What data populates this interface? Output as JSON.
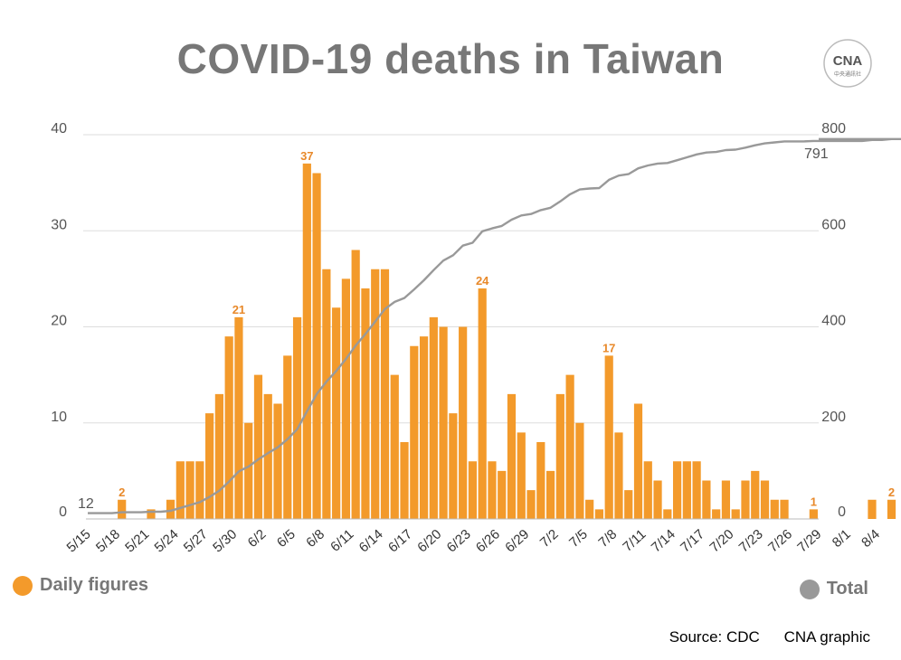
{
  "title": "COVID-19 deaths in Taiwan",
  "logo": {
    "main": "CNA",
    "sub": "中央通訊社"
  },
  "legend": {
    "daily": "Daily figures",
    "total": "Total"
  },
  "footer": {
    "source": "Source: CDC",
    "credit": "CNA graphic"
  },
  "colors": {
    "bar": "#F39A2B",
    "line": "#999999",
    "label": "#E8892A",
    "grid": "#DDDDDD",
    "text": "#555555"
  },
  "chart_data": {
    "type": "bar",
    "title": "COVID-19 deaths in Taiwan",
    "x_tick_labels": [
      "5/15",
      "5/18",
      "5/21",
      "5/24",
      "5/27",
      "5/30",
      "6/2",
      "6/5",
      "6/8",
      "6/11",
      "6/14",
      "6/17",
      "6/20",
      "6/23",
      "6/26",
      "6/29",
      "7/2",
      "7/5",
      "7/8",
      "7/11",
      "7/14",
      "7/17",
      "7/20",
      "7/23",
      "7/26",
      "7/29",
      "8/1",
      "8/4"
    ],
    "y_ticks": [
      0,
      10,
      20,
      30,
      40
    ],
    "y2_ticks": [
      0,
      200,
      400,
      600,
      800
    ],
    "ylim": [
      0,
      40
    ],
    "y2lim": [
      0,
      800
    ],
    "grid": true,
    "series": [
      {
        "name": "Daily figures",
        "type": "bar",
        "values": [
          0,
          0,
          0,
          2,
          0,
          0,
          1,
          0,
          2,
          6,
          6,
          6,
          11,
          13,
          19,
          21,
          10,
          15,
          13,
          12,
          17,
          21,
          37,
          36,
          26,
          22,
          25,
          28,
          24,
          26,
          26,
          15,
          8,
          18,
          19,
          21,
          20,
          11,
          20,
          6,
          24,
          6,
          5,
          13,
          9,
          3,
          8,
          5,
          13,
          15,
          10,
          2,
          1,
          17,
          9,
          3,
          12,
          6,
          4,
          1,
          6,
          6,
          6,
          4,
          1,
          4,
          1,
          4,
          5,
          4,
          2,
          2,
          0,
          0,
          1,
          0,
          0,
          0,
          0,
          0,
          2,
          0,
          2,
          0
        ],
        "labels": [
          {
            "index": 3,
            "value": 2
          },
          {
            "index": 15,
            "value": 21
          },
          {
            "index": 22,
            "value": 37
          },
          {
            "index": 40,
            "value": 24
          },
          {
            "index": 53,
            "value": 17
          },
          {
            "index": 74,
            "value": 1
          },
          {
            "index": 82,
            "value": 2
          }
        ]
      },
      {
        "name": "Total",
        "type": "line",
        "axis": "right",
        "start_label": "12",
        "end_label": "791"
      }
    ]
  }
}
